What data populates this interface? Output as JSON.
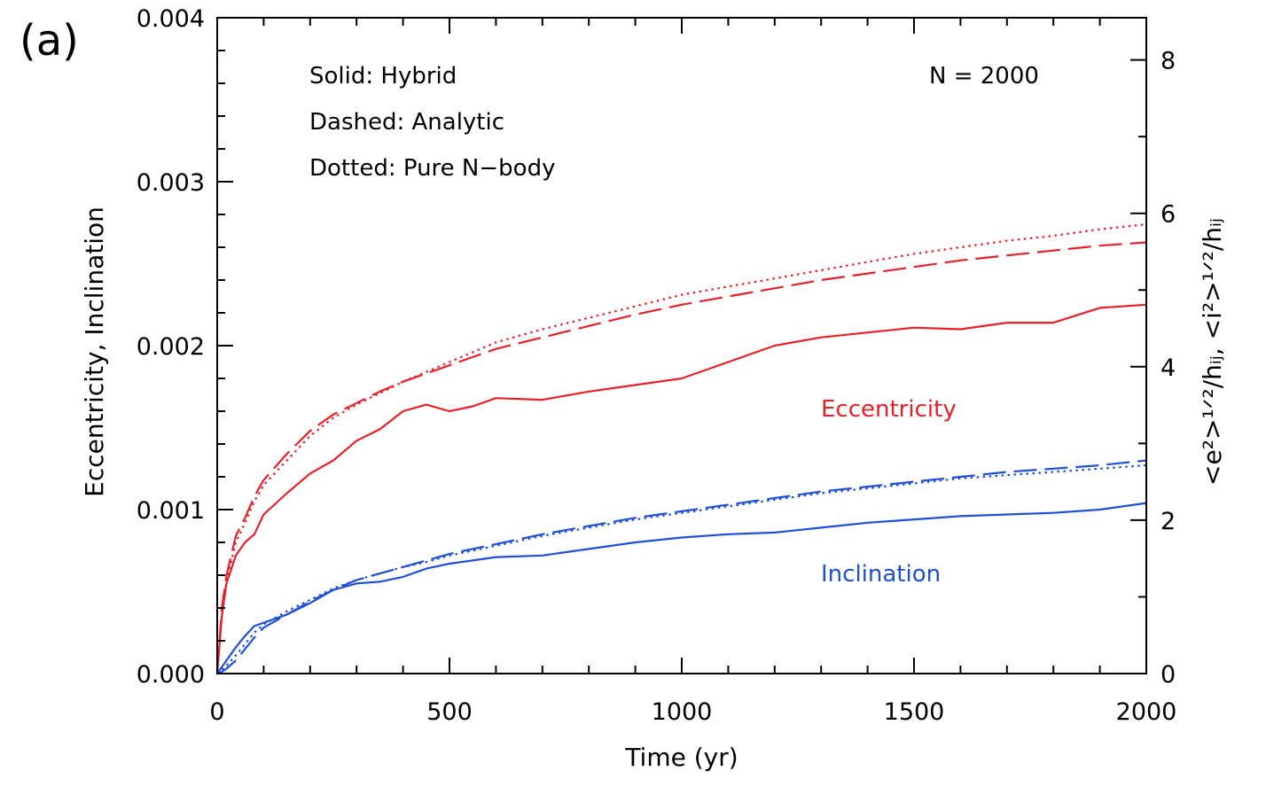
{
  "panel_label": "(a)",
  "chart_data": {
    "type": "line",
    "xlabel": "Time (yr)",
    "ylabel": "Eccentricity, Inclination",
    "y2label": "<e²>¹ᐟ²/hᵢⱼ,  <i²>¹ᐟ²/hᵢⱼ",
    "xlim": [
      0,
      2000
    ],
    "ylim": [
      0,
      0.004
    ],
    "y2lim": [
      0,
      8.55
    ],
    "x_ticks": [
      "0",
      "500",
      "1000",
      "1500",
      "2000"
    ],
    "y_ticks": [
      "0.000",
      "0.001",
      "0.002",
      "0.003",
      "0.004"
    ],
    "y2_ticks": [
      "0",
      "2",
      "4",
      "6",
      "8"
    ],
    "annotations": {
      "legend_solid": "Solid: Hybrid",
      "legend_dashed": "Dashed: Analytic",
      "legend_dotted": "Dotted: Pure N−body",
      "n_label": "N = 2000",
      "ecc_label": "Eccentricity",
      "inc_label": "Inclination"
    },
    "colors": {
      "eccentricity": "#e8202a",
      "inclination": "#1f4fd8"
    },
    "x": [
      0,
      10,
      20,
      40,
      60,
      80,
      100,
      150,
      200,
      250,
      300,
      350,
      400,
      450,
      500,
      550,
      600,
      700,
      800,
      900,
      1000,
      1100,
      1200,
      1300,
      1400,
      1500,
      1600,
      1700,
      1800,
      1900,
      2000
    ],
    "series": [
      {
        "quantity": "eccentricity",
        "style": "solid",
        "values": [
          0.0,
          0.00035,
          0.00055,
          0.00072,
          0.0008,
          0.00085,
          0.00097,
          0.0011,
          0.00122,
          0.0013,
          0.00142,
          0.00149,
          0.0016,
          0.00164,
          0.0016,
          0.00163,
          0.00168,
          0.00167,
          0.00172,
          0.00176,
          0.0018,
          0.0019,
          0.002,
          0.00205,
          0.00208,
          0.00211,
          0.0021,
          0.00214,
          0.00214,
          0.00223,
          0.00225
        ]
      },
      {
        "quantity": "eccentricity",
        "style": "dashed",
        "values": [
          0.0,
          0.0004,
          0.0006,
          0.00084,
          0.00095,
          0.00108,
          0.00118,
          0.00134,
          0.00148,
          0.00158,
          0.00165,
          0.00172,
          0.00178,
          0.00183,
          0.00188,
          0.00193,
          0.00198,
          0.00205,
          0.00212,
          0.00219,
          0.00225,
          0.0023,
          0.00235,
          0.0024,
          0.00244,
          0.00248,
          0.00252,
          0.00255,
          0.00258,
          0.00261,
          0.00263
        ]
      },
      {
        "quantity": "eccentricity",
        "style": "dotted",
        "values": [
          0.0,
          0.00036,
          0.00056,
          0.0008,
          0.00092,
          0.00105,
          0.00115,
          0.0013,
          0.00145,
          0.00156,
          0.00164,
          0.00171,
          0.00178,
          0.00184,
          0.0019,
          0.00196,
          0.00202,
          0.0021,
          0.00217,
          0.00224,
          0.00231,
          0.00236,
          0.00241,
          0.00246,
          0.00251,
          0.00256,
          0.0026,
          0.00264,
          0.00267,
          0.00271,
          0.00274
        ]
      },
      {
        "quantity": "inclination",
        "style": "solid",
        "values": [
          0.0,
          4e-05,
          8e-05,
          0.00016,
          0.00023,
          0.00029,
          0.00031,
          0.00036,
          0.00043,
          0.00051,
          0.00055,
          0.00056,
          0.00059,
          0.00064,
          0.00067,
          0.00069,
          0.00071,
          0.00072,
          0.00076,
          0.0008,
          0.00083,
          0.00085,
          0.00086,
          0.00089,
          0.00092,
          0.00094,
          0.00096,
          0.00097,
          0.00098,
          0.001,
          0.00104
        ]
      },
      {
        "quantity": "inclination",
        "style": "dashed",
        "values": [
          0.0,
          1e-05,
          3e-05,
          8e-05,
          0.00015,
          0.00022,
          0.00028,
          0.00036,
          0.00044,
          0.00051,
          0.00057,
          0.00061,
          0.00065,
          0.00069,
          0.00073,
          0.00076,
          0.00079,
          0.00085,
          0.0009,
          0.00095,
          0.00099,
          0.00103,
          0.00107,
          0.00111,
          0.00114,
          0.00117,
          0.0012,
          0.00123,
          0.00125,
          0.00127,
          0.0013
        ]
      },
      {
        "quantity": "inclination",
        "style": "dotted",
        "values": [
          0.0,
          2e-05,
          5e-05,
          0.00011,
          0.00018,
          0.00025,
          0.0003,
          0.00038,
          0.00045,
          0.00052,
          0.00057,
          0.00061,
          0.00065,
          0.00068,
          0.00072,
          0.00075,
          0.00078,
          0.00084,
          0.00089,
          0.00094,
          0.00098,
          0.00102,
          0.00106,
          0.0011,
          0.00113,
          0.00116,
          0.00119,
          0.00121,
          0.00123,
          0.00125,
          0.00127
        ]
      }
    ]
  }
}
